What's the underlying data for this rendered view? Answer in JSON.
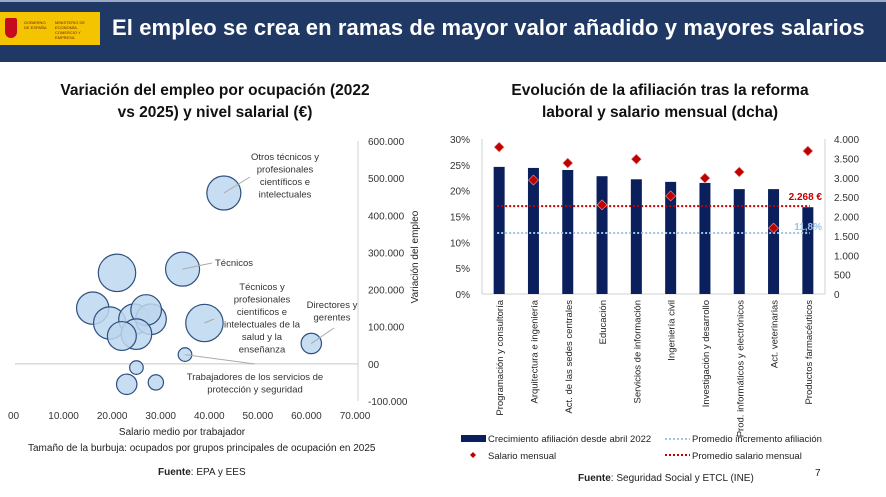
{
  "header": {
    "title": "El empleo se crea en ramas de mayor valor añadido y mayores salarios",
    "logo": {
      "line1": "GOBIERNO DE ESPAÑA",
      "line2": "MINISTERIO DE ECONOMÍA, COMERCIO Y EMPRESA"
    }
  },
  "colors": {
    "header_bg": "#1f3864",
    "bubble_fill": "#bdd7ee",
    "bubble_stroke": "#2f4f7f",
    "bar": "#0b1f5c",
    "diamond": "#c00000",
    "avg_salary_line": "#c00000",
    "avg_growth_line": "#9dc3e6"
  },
  "left": {
    "title_line1": "Variación del empleo por ocupación (2022",
    "title_line2": "vs 2025) y nivel salarial (€)",
    "bubble_note": "Tamaño de la burbuja: ocupados por grupos principales de ocupación en 2025",
    "source_label": "Fuente",
    "source_text": ": EPA y EES"
  },
  "right": {
    "title_line1": "Evolución de la afiliación tras la reforma",
    "title_line2": "laboral y salario mensual (dcha)",
    "source_label": "Fuente",
    "source_text": ": Seguridad Social y ETCL (INE)",
    "page_number": "7"
  },
  "chart_data": [
    {
      "type": "scatter",
      "subtype": "bubble",
      "title": "Variación del empleo por ocupación (2022 vs 2025) y nivel salarial (€)",
      "xlabel": "Salario medio por trabajador",
      "ylabel": "Variación del empleo",
      "xlim": [
        0,
        70000
      ],
      "ylim": [
        -100000,
        600000
      ],
      "x_ticks": [
        "00",
        "10.000",
        "20.000",
        "30.000",
        "40.000",
        "50.000",
        "60.000",
        "70.000"
      ],
      "y_ticks": [
        "600.000",
        "500.000",
        "400.000",
        "300.000",
        "200.000",
        "100.000",
        "00",
        "-100.000"
      ],
      "grid": false,
      "points": [
        {
          "x": 43000,
          "y": 460000,
          "size": 1.0,
          "label": "Otros técnicos y profesionales científicos e intelectuales"
        },
        {
          "x": 34500,
          "y": 255000,
          "size": 1.0,
          "label": "Técnicos"
        },
        {
          "x": 39000,
          "y": 110000,
          "size": 1.1,
          "label": "Técnicos y profesionales científicos e intelectuales de la salud y la enseñanza"
        },
        {
          "x": 61000,
          "y": 55000,
          "size": 0.6,
          "label": "Directores y gerentes"
        },
        {
          "x": 35000,
          "y": 25000,
          "size": 0.4,
          "label": "Trabajadores de los servicios de protección y seguridad"
        },
        {
          "x": 21000,
          "y": 245000,
          "size": 1.1,
          "label": ""
        },
        {
          "x": 16000,
          "y": 150000,
          "size": 0.95,
          "label": ""
        },
        {
          "x": 19500,
          "y": 110000,
          "size": 0.95,
          "label": ""
        },
        {
          "x": 24500,
          "y": 120000,
          "size": 0.9,
          "label": ""
        },
        {
          "x": 28000,
          "y": 120000,
          "size": 0.9,
          "label": ""
        },
        {
          "x": 27000,
          "y": 145000,
          "size": 0.9,
          "label": ""
        },
        {
          "x": 25000,
          "y": 80000,
          "size": 0.9,
          "label": ""
        },
        {
          "x": 22000,
          "y": 75000,
          "size": 0.85,
          "label": ""
        },
        {
          "x": 25000,
          "y": -10000,
          "size": 0.4,
          "label": ""
        },
        {
          "x": 23000,
          "y": -55000,
          "size": 0.6,
          "label": ""
        },
        {
          "x": 29000,
          "y": -50000,
          "size": 0.45,
          "label": ""
        }
      ]
    },
    {
      "type": "bar",
      "title": "Evolución de la afiliación tras la reforma laboral y salario mensual (dcha)",
      "categories": [
        "Programación y consultoría",
        "Arquitectura e ingeniería",
        "Act. de las sedes centrales",
        "Educación",
        "Servicios de información",
        "Ingeniería civil",
        "Investigación y desarrollo",
        "Prod. informáticos y electrónicos",
        "Act. veterinarias",
        "Productos farmacéuticos"
      ],
      "ylim": [
        0,
        30
      ],
      "y2lim": [
        0,
        4000
      ],
      "y_ticks": [
        "0%",
        "5%",
        "10%",
        "15%",
        "20%",
        "25%",
        "30%"
      ],
      "y2_ticks": [
        "0",
        "500",
        "1.000",
        "1.500",
        "2.000",
        "2.500",
        "3.000",
        "3.500",
        "4.000"
      ],
      "series": [
        {
          "name": "Crecimiento afiliación desde abril 2022",
          "type": "bar",
          "axis": "left",
          "values": [
            24.6,
            24.4,
            24.0,
            22.8,
            22.2,
            21.7,
            21.5,
            20.3,
            20.3,
            16.8
          ]
        },
        {
          "name": "Salario mensual",
          "type": "scatter",
          "marker": "diamond",
          "axis": "right",
          "values": [
            3790,
            2940,
            3380,
            2300,
            3480,
            2530,
            2990,
            3150,
            1700,
            3690
          ]
        },
        {
          "name": "Promedio incremento afiliación",
          "type": "line",
          "style": "dotted",
          "axis": "left",
          "value": 11.8,
          "label": "11,8%"
        },
        {
          "name": "Promedio salario mensual",
          "type": "line",
          "style": "dotted",
          "axis": "right",
          "value": 2268,
          "label": "2.268 €"
        }
      ],
      "legend": "bottom",
      "grid": false
    }
  ]
}
